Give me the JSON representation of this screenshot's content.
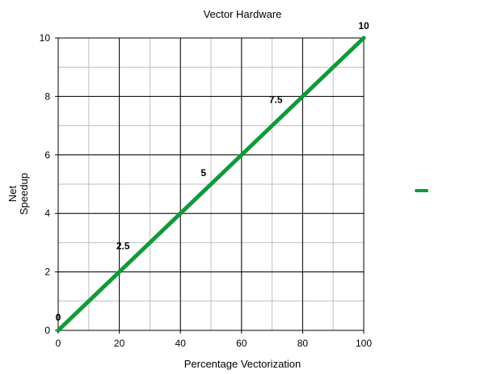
{
  "chart_data": {
    "type": "line",
    "title": "Vector Hardware",
    "xlabel": "Percentage Vectorization",
    "ylabel_lines": [
      "Net",
      "Speedup"
    ],
    "xlim": [
      0,
      100
    ],
    "ylim": [
      0,
      10
    ],
    "x_ticks": [
      0,
      20,
      40,
      60,
      80,
      100
    ],
    "y_ticks": [
      0,
      2,
      4,
      6,
      8,
      10
    ],
    "x_tick_labels": [
      "0",
      "20",
      "40",
      "60",
      "80",
      "100"
    ],
    "y_tick_labels": [
      "0",
      "2",
      "4",
      "6",
      "8",
      "10"
    ],
    "grid": true,
    "legend_position": "right",
    "series": [
      {
        "color": "#0f9a3a",
        "x": [
          0,
          25,
          50,
          75,
          100
        ],
        "y": [
          0,
          2.5,
          5,
          7.5,
          10
        ],
        "labels": [
          "0",
          "2.5",
          "5",
          "7.5",
          "10"
        ]
      }
    ]
  }
}
